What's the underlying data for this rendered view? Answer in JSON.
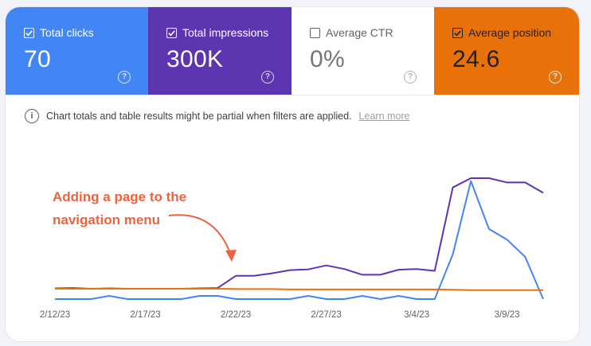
{
  "metrics": {
    "clicks": {
      "label": "Total clicks",
      "value": "70",
      "checked": true,
      "color": "#4285f4"
    },
    "impressions": {
      "label": "Total impressions",
      "value": "300K",
      "checked": true,
      "color": "#5e35b1"
    },
    "ctr": {
      "label": "Average CTR",
      "value": "0%",
      "checked": false,
      "color": "#ffffff"
    },
    "position": {
      "label": "Average position",
      "value": "24.6",
      "checked": true,
      "color": "#e8710a"
    }
  },
  "notice": {
    "text": "Chart totals and table results might be partial when filters are applied.",
    "link": "Learn more"
  },
  "annotation": {
    "line1": "Adding a page to the",
    "line2": "navigation menu",
    "color": "#f0623d"
  },
  "chart_data": {
    "type": "line",
    "categories": [
      "2/12/23",
      "2/13/23",
      "2/14/23",
      "2/15/23",
      "2/16/23",
      "2/17/23",
      "2/18/23",
      "2/19/23",
      "2/20/23",
      "2/21/23",
      "2/22/23",
      "2/23/23",
      "2/24/23",
      "2/25/23",
      "2/26/23",
      "2/27/23",
      "2/28/23",
      "3/1/23",
      "3/2/23",
      "3/3/23",
      "3/4/23",
      "3/5/23",
      "3/6/23",
      "3/7/23",
      "3/8/23",
      "3/9/23",
      "3/10/23",
      "3/11/23"
    ],
    "x_tick_labels": [
      "2/12/23",
      "2/17/23",
      "2/22/23",
      "2/27/23",
      "3/4/23",
      "3/9/23"
    ],
    "series": [
      {
        "metric": "impressions",
        "color": "#5e35b1",
        "values": [
          30,
          31,
          29,
          30,
          29,
          29,
          29,
          29,
          30,
          31,
          65,
          65,
          72,
          81,
          83,
          94,
          84,
          68,
          68,
          82,
          84,
          79,
          312,
          338,
          338,
          326,
          326,
          297
        ]
      },
      {
        "metric": "clicks",
        "color": "#4285f4",
        "values": [
          0,
          0,
          0,
          9,
          0,
          0,
          0,
          0,
          9,
          9,
          0,
          0,
          0,
          0,
          9,
          0,
          0,
          9,
          0,
          9,
          0,
          0,
          125,
          330,
          196,
          166,
          118,
          0
        ]
      },
      {
        "metric": "position",
        "color": "#e8710a",
        "values": [
          29,
          29,
          29,
          29,
          29,
          29,
          29,
          29,
          29,
          29,
          28,
          28,
          28,
          27,
          27,
          27,
          27,
          27,
          27,
          27,
          27,
          27,
          26,
          25,
          25,
          25,
          25,
          25
        ]
      }
    ],
    "grid": false,
    "legend": "none"
  }
}
